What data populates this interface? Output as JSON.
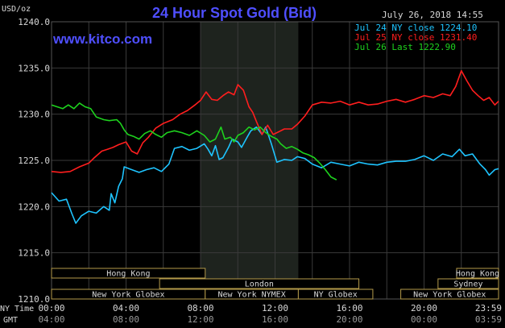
{
  "chart_data": {
    "type": "line",
    "title": "24 Hour Spot Gold (Bid)",
    "website": "www.kitco.com",
    "timestamp": "July 26, 2018 14:55",
    "ylabel": "USD/oz",
    "ylim": [
      1210,
      1240
    ],
    "yticks": [
      "1240.0",
      "1235.0",
      "1230.0",
      "1225.0",
      "1220.0",
      "1215.0",
      "1210.0"
    ],
    "xlim_hours": [
      0,
      24
    ],
    "ny_time_label": "NY Time",
    "gmt_label": "GMT",
    "x_ticks_ny": [
      "00:00",
      "04:00",
      "08:00",
      "12:00",
      "16:00",
      "20:00",
      "23:59"
    ],
    "x_ticks_gmt": [
      "04:00",
      "08:00",
      "12:00",
      "16:00",
      "20:00",
      "00:00",
      "03:59"
    ],
    "grid": true,
    "legend_position": "top-right",
    "highlight_band_hours": [
      8,
      13.25
    ],
    "colors": {
      "background": "#000000",
      "grid": "#3a3a3a",
      "band": "#1e231e",
      "title": "#4f4fff",
      "text": "#d8d8d8",
      "session_fill": "#000000",
      "session_border": "#b49a4a"
    },
    "series": [
      {
        "name": "Jul 24 NY close 1224.10",
        "color": "#1ec4ff",
        "points": [
          [
            0,
            1221.5
          ],
          [
            0.4,
            1220.6
          ],
          [
            0.8,
            1220.8
          ],
          [
            1.1,
            1219.2
          ],
          [
            1.3,
            1218.2
          ],
          [
            1.6,
            1219.0
          ],
          [
            2.0,
            1219.5
          ],
          [
            2.4,
            1219.3
          ],
          [
            2.8,
            1220.0
          ],
          [
            3.1,
            1219.6
          ],
          [
            3.2,
            1221.4
          ],
          [
            3.4,
            1220.4
          ],
          [
            3.6,
            1222.2
          ],
          [
            3.8,
            1223.0
          ],
          [
            3.9,
            1224.3
          ],
          [
            4.3,
            1224.0
          ],
          [
            4.7,
            1223.7
          ],
          [
            5.1,
            1224.0
          ],
          [
            5.5,
            1224.2
          ],
          [
            5.9,
            1223.8
          ],
          [
            6.3,
            1224.6
          ],
          [
            6.6,
            1226.3
          ],
          [
            7.0,
            1226.5
          ],
          [
            7.4,
            1226.1
          ],
          [
            7.8,
            1226.3
          ],
          [
            8.2,
            1226.8
          ],
          [
            8.4,
            1226.2
          ],
          [
            8.6,
            1225.5
          ],
          [
            8.8,
            1226.6
          ],
          [
            9.0,
            1225.1
          ],
          [
            9.2,
            1225.3
          ],
          [
            9.5,
            1226.4
          ],
          [
            9.7,
            1227.3
          ],
          [
            10.0,
            1227.0
          ],
          [
            10.2,
            1226.4
          ],
          [
            10.5,
            1227.5
          ],
          [
            10.7,
            1228.2
          ],
          [
            11.0,
            1228.6
          ],
          [
            11.3,
            1227.8
          ],
          [
            11.5,
            1228.6
          ],
          [
            11.8,
            1226.8
          ],
          [
            12.1,
            1224.8
          ],
          [
            12.5,
            1225.1
          ],
          [
            12.9,
            1225.0
          ],
          [
            13.2,
            1225.4
          ],
          [
            13.6,
            1225.2
          ],
          [
            14.0,
            1224.6
          ],
          [
            14.5,
            1224.2
          ],
          [
            15.0,
            1224.8
          ],
          [
            15.5,
            1224.6
          ],
          [
            16.0,
            1224.4
          ],
          [
            16.5,
            1224.8
          ],
          [
            17.0,
            1224.6
          ],
          [
            17.5,
            1224.5
          ],
          [
            18.0,
            1224.8
          ],
          [
            18.5,
            1224.9
          ],
          [
            19.0,
            1224.9
          ],
          [
            19.5,
            1225.1
          ],
          [
            20.0,
            1225.5
          ],
          [
            20.5,
            1225.0
          ],
          [
            21.0,
            1225.7
          ],
          [
            21.5,
            1225.4
          ],
          [
            21.9,
            1226.2
          ],
          [
            22.2,
            1225.5
          ],
          [
            22.6,
            1225.7
          ],
          [
            23.0,
            1224.6
          ],
          [
            23.3,
            1224.0
          ],
          [
            23.5,
            1223.4
          ],
          [
            23.8,
            1224.0
          ],
          [
            24.0,
            1224.1
          ]
        ]
      },
      {
        "name": "Jul 25 NY close 1231.40",
        "color": "#ff1e1e",
        "points": [
          [
            0,
            1223.8
          ],
          [
            0.5,
            1223.7
          ],
          [
            1.0,
            1223.8
          ],
          [
            1.5,
            1224.3
          ],
          [
            2.0,
            1224.7
          ],
          [
            2.3,
            1225.3
          ],
          [
            2.7,
            1226.0
          ],
          [
            3.0,
            1226.2
          ],
          [
            3.3,
            1226.4
          ],
          [
            3.6,
            1226.7
          ],
          [
            4.0,
            1227.0
          ],
          [
            4.3,
            1226.0
          ],
          [
            4.6,
            1225.7
          ],
          [
            4.9,
            1226.9
          ],
          [
            5.2,
            1227.5
          ],
          [
            5.6,
            1228.5
          ],
          [
            6.0,
            1229.0
          ],
          [
            6.5,
            1229.4
          ],
          [
            6.9,
            1230.0
          ],
          [
            7.3,
            1230.4
          ],
          [
            7.7,
            1231.0
          ],
          [
            8.0,
            1231.5
          ],
          [
            8.3,
            1232.4
          ],
          [
            8.6,
            1231.6
          ],
          [
            8.9,
            1231.5
          ],
          [
            9.2,
            1232.0
          ],
          [
            9.5,
            1232.4
          ],
          [
            9.8,
            1232.1
          ],
          [
            10.0,
            1233.2
          ],
          [
            10.3,
            1232.6
          ],
          [
            10.6,
            1230.8
          ],
          [
            10.8,
            1230.2
          ],
          [
            11.0,
            1229.2
          ],
          [
            11.3,
            1227.8
          ],
          [
            11.6,
            1228.8
          ],
          [
            11.9,
            1227.8
          ],
          [
            12.2,
            1228.1
          ],
          [
            12.5,
            1228.4
          ],
          [
            12.9,
            1228.4
          ],
          [
            13.2,
            1228.9
          ],
          [
            13.6,
            1229.8
          ],
          [
            14.0,
            1231.0
          ],
          [
            14.5,
            1231.3
          ],
          [
            15.0,
            1231.2
          ],
          [
            15.5,
            1231.4
          ],
          [
            16.0,
            1231.0
          ],
          [
            16.5,
            1231.3
          ],
          [
            17.0,
            1231.0
          ],
          [
            17.5,
            1231.1
          ],
          [
            18.0,
            1231.4
          ],
          [
            18.5,
            1231.6
          ],
          [
            19.0,
            1231.3
          ],
          [
            19.5,
            1231.6
          ],
          [
            20.0,
            1232.0
          ],
          [
            20.5,
            1231.8
          ],
          [
            21.0,
            1232.2
          ],
          [
            21.4,
            1232.0
          ],
          [
            21.7,
            1233.0
          ],
          [
            22.0,
            1234.7
          ],
          [
            22.3,
            1233.6
          ],
          [
            22.6,
            1232.6
          ],
          [
            22.9,
            1232.0
          ],
          [
            23.2,
            1231.5
          ],
          [
            23.5,
            1231.8
          ],
          [
            23.8,
            1231.0
          ],
          [
            24.0,
            1231.4
          ]
        ]
      },
      {
        "name": "Jul 26 Last 1222.90",
        "color": "#1ed21e",
        "points": [
          [
            0,
            1231.0
          ],
          [
            0.3,
            1230.8
          ],
          [
            0.6,
            1230.6
          ],
          [
            0.9,
            1231.0
          ],
          [
            1.2,
            1230.6
          ],
          [
            1.5,
            1231.2
          ],
          [
            1.8,
            1230.8
          ],
          [
            2.1,
            1230.6
          ],
          [
            2.4,
            1229.7
          ],
          [
            2.8,
            1229.4
          ],
          [
            3.1,
            1229.3
          ],
          [
            3.5,
            1229.4
          ],
          [
            3.7,
            1229.0
          ],
          [
            3.9,
            1228.3
          ],
          [
            4.1,
            1227.8
          ],
          [
            4.4,
            1227.6
          ],
          [
            4.7,
            1227.3
          ],
          [
            5.0,
            1227.9
          ],
          [
            5.3,
            1228.2
          ],
          [
            5.6,
            1227.8
          ],
          [
            5.9,
            1227.5
          ],
          [
            6.2,
            1228.0
          ],
          [
            6.6,
            1228.2
          ],
          [
            7.0,
            1228.0
          ],
          [
            7.4,
            1227.7
          ],
          [
            7.8,
            1228.2
          ],
          [
            8.2,
            1227.7
          ],
          [
            8.5,
            1227.0
          ],
          [
            8.8,
            1227.3
          ],
          [
            9.1,
            1228.6
          ],
          [
            9.3,
            1227.3
          ],
          [
            9.6,
            1227.5
          ],
          [
            9.8,
            1227.0
          ],
          [
            10.0,
            1227.7
          ],
          [
            10.3,
            1228.0
          ],
          [
            10.6,
            1228.6
          ],
          [
            10.9,
            1228.3
          ],
          [
            11.2,
            1228.6
          ],
          [
            11.5,
            1228.0
          ],
          [
            11.8,
            1227.6
          ],
          [
            12.1,
            1227.3
          ],
          [
            12.3,
            1226.8
          ],
          [
            12.6,
            1226.3
          ],
          [
            12.9,
            1226.5
          ],
          [
            13.2,
            1226.2
          ],
          [
            13.5,
            1225.8
          ],
          [
            13.8,
            1225.6
          ],
          [
            14.1,
            1225.3
          ],
          [
            14.4,
            1224.7
          ],
          [
            14.7,
            1224.0
          ],
          [
            15.0,
            1223.2
          ],
          [
            15.3,
            1222.9
          ]
        ]
      }
    ],
    "sessions": [
      {
        "name": "Hong Kong",
        "row": 0,
        "start": 0,
        "end": 8.25
      },
      {
        "name": "Hong Kong",
        "row": 0,
        "start": 21.75,
        "end": 24
      },
      {
        "name": "London",
        "row": 1,
        "start": 5.8,
        "end": 16.5
      },
      {
        "name": "Sydney",
        "row": 1,
        "start": 20.75,
        "end": 24
      },
      {
        "name": "New York Globex",
        "row": 2,
        "start": 0,
        "end": 8.25
      },
      {
        "name": "New York NYMEX",
        "row": 2,
        "start": 8.25,
        "end": 13.25
      },
      {
        "name": "NY Globex",
        "row": 2,
        "start": 13.25,
        "end": 17.25
      },
      {
        "name": "New York Globex",
        "row": 2,
        "start": 18.75,
        "end": 24
      }
    ]
  }
}
